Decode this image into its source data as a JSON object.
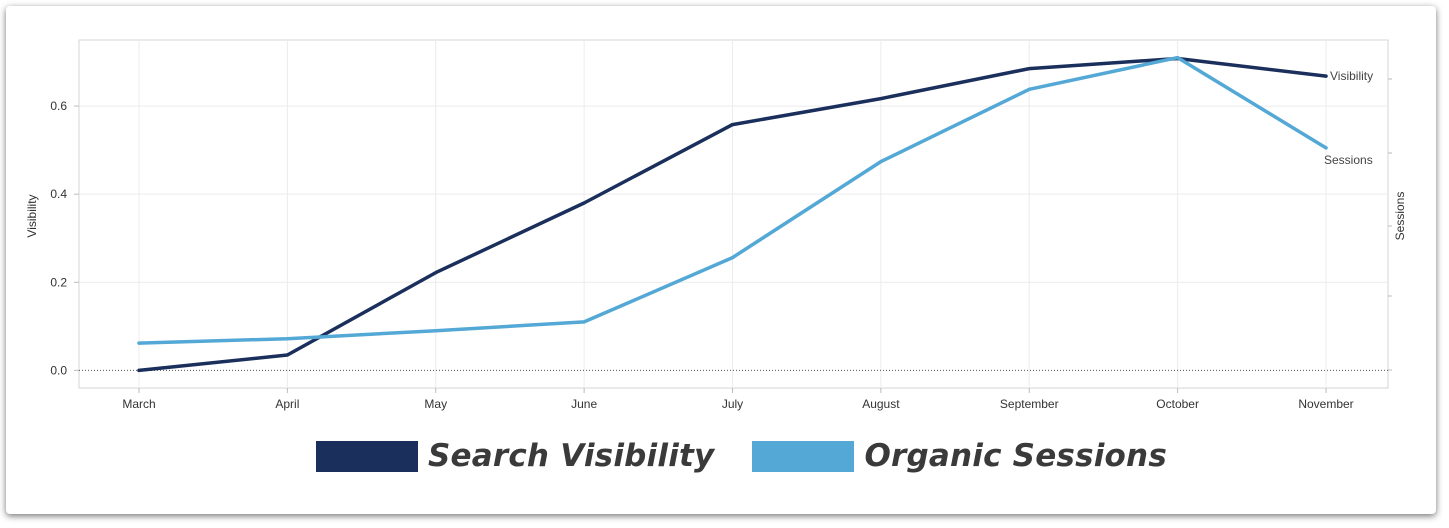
{
  "chart_data": {
    "type": "line",
    "categories": [
      "March",
      "April",
      "May",
      "June",
      "July",
      "August",
      "September",
      "October",
      "November"
    ],
    "series": [
      {
        "name": "Search Visibility",
        "end_label": "Visibility",
        "color": "#1b2f5c",
        "values": [
          0.0,
          0.035,
          0.222,
          0.38,
          0.558,
          0.617,
          0.685,
          0.708,
          0.668
        ]
      },
      {
        "name": "Organic Sessions",
        "end_label": "Sessions",
        "color": "#54a8d6",
        "values": [
          0.062,
          0.072,
          0.09,
          0.11,
          0.256,
          0.474,
          0.638,
          0.71,
          0.505
        ]
      }
    ],
    "y_axis": {
      "title": "Visibility",
      "ticks": [
        "0.0",
        "0.2",
        "0.4",
        "0.6"
      ],
      "tick_values": [
        0,
        0.2,
        0.4,
        0.6
      ],
      "range": [
        -0.04,
        0.75
      ]
    },
    "y2_axis": {
      "title": "Sessions"
    },
    "grid": true,
    "legend": {
      "placement": "bottom-center",
      "items": [
        {
          "label": "Search Visibility",
          "color": "#1b2f5c"
        },
        {
          "label": "Organic Sessions",
          "color": "#54a8d6"
        }
      ]
    }
  }
}
